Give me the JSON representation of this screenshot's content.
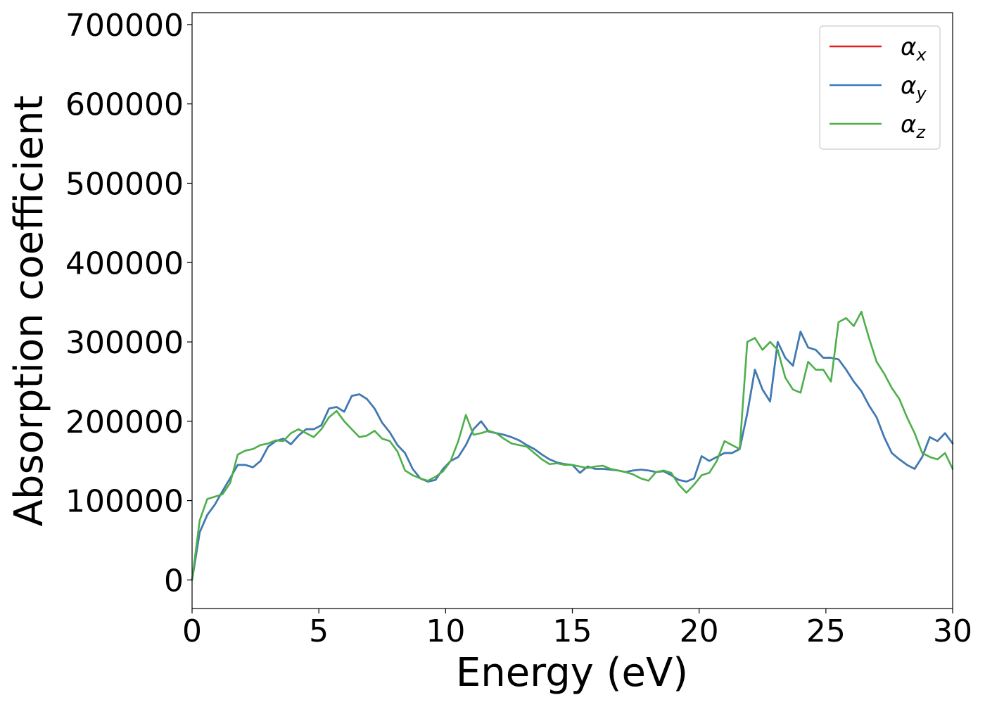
{
  "chart_data": {
    "type": "line",
    "xlabel": "Energy (eV)",
    "ylabel": "Absorption coefficient",
    "xlim": [
      0,
      30
    ],
    "ylim": [
      -36000,
      715000
    ],
    "x_ticks": [
      0,
      5,
      10,
      15,
      20,
      25,
      30
    ],
    "x_tick_labels": [
      "0",
      "5",
      "10",
      "15",
      "20",
      "25",
      "30"
    ],
    "y_ticks": [
      0,
      100000,
      200000,
      300000,
      400000,
      500000,
      600000,
      700000
    ],
    "y_tick_labels": [
      "0",
      "100000",
      "200000",
      "300000",
      "400000",
      "500000",
      "600000",
      "700000"
    ],
    "grid": false,
    "legend_position": "top-right",
    "series": [
      {
        "name": "αx",
        "symbol": "α",
        "subscript": "x",
        "color": "#e41a1c",
        "x": [
          0,
          0.3,
          0.6,
          0.9,
          1.2,
          1.5,
          1.8,
          2.1,
          2.4,
          2.7,
          3.0,
          3.3,
          3.6,
          3.9,
          4.2,
          4.5,
          4.8,
          5.1,
          5.4,
          5.7,
          6.0,
          6.3,
          6.6,
          6.9,
          7.2,
          7.5,
          7.8,
          8.1,
          8.4,
          8.7,
          9.0,
          9.3,
          9.6,
          9.9,
          10.2,
          10.5,
          10.8,
          11.1,
          11.4,
          11.7,
          12.0,
          12.3,
          12.6,
          12.9,
          13.2,
          13.5,
          13.8,
          14.1,
          14.4,
          14.7,
          15.0,
          15.3,
          15.6,
          15.9,
          16.2,
          16.5,
          16.8,
          17.1,
          17.4,
          17.7,
          18.0,
          18.3,
          18.6,
          18.9,
          19.2,
          19.5,
          19.8,
          20.1,
          20.4,
          20.7,
          21.0,
          21.3,
          21.6,
          21.9,
          22.2,
          22.5,
          22.8,
          23.1,
          23.4,
          23.7,
          24.0,
          24.3,
          24.6,
          24.9,
          25.2,
          25.5,
          25.8,
          26.1,
          26.4,
          26.7,
          27.0,
          27.3,
          27.6,
          27.9,
          28.2,
          28.5,
          28.8,
          29.1,
          29.4,
          29.7,
          30.0
        ],
        "values": [
          0,
          60000,
          82000,
          95000,
          112000,
          128000,
          145000,
          145000,
          142000,
          150000,
          168000,
          175000,
          178000,
          171000,
          182000,
          190000,
          190000,
          195000,
          216000,
          218000,
          212000,
          232000,
          234000,
          228000,
          216000,
          198000,
          186000,
          170000,
          160000,
          140000,
          128000,
          124000,
          126000,
          140000,
          150000,
          155000,
          170000,
          190000,
          200000,
          187000,
          185000,
          183000,
          180000,
          176000,
          170000,
          165000,
          158000,
          152000,
          148000,
          146000,
          145000,
          135000,
          143000,
          140000,
          140000,
          139000,
          138000,
          136000,
          138000,
          139000,
          138000,
          136000,
          137000,
          132000,
          126000,
          124000,
          128000,
          156000,
          150000,
          155000,
          160000,
          160000,
          165000,
          210000,
          265000,
          240000,
          225000,
          300000,
          280000,
          270000,
          313000,
          293000,
          290000,
          280000,
          280000,
          278000,
          265000,
          250000,
          238000,
          220000,
          205000,
          180000,
          160000,
          152000,
          145000,
          140000,
          155000,
          180000,
          175000,
          185000,
          172000
        ]
      },
      {
        "name": "αy",
        "symbol": "α",
        "subscript": "y",
        "color": "#377eb8",
        "x": [
          0,
          0.3,
          0.6,
          0.9,
          1.2,
          1.5,
          1.8,
          2.1,
          2.4,
          2.7,
          3.0,
          3.3,
          3.6,
          3.9,
          4.2,
          4.5,
          4.8,
          5.1,
          5.4,
          5.7,
          6.0,
          6.3,
          6.6,
          6.9,
          7.2,
          7.5,
          7.8,
          8.1,
          8.4,
          8.7,
          9.0,
          9.3,
          9.6,
          9.9,
          10.2,
          10.5,
          10.8,
          11.1,
          11.4,
          11.7,
          12.0,
          12.3,
          12.6,
          12.9,
          13.2,
          13.5,
          13.8,
          14.1,
          14.4,
          14.7,
          15.0,
          15.3,
          15.6,
          15.9,
          16.2,
          16.5,
          16.8,
          17.1,
          17.4,
          17.7,
          18.0,
          18.3,
          18.6,
          18.9,
          19.2,
          19.5,
          19.8,
          20.1,
          20.4,
          20.7,
          21.0,
          21.3,
          21.6,
          21.9,
          22.2,
          22.5,
          22.8,
          23.1,
          23.4,
          23.7,
          24.0,
          24.3,
          24.6,
          24.9,
          25.2,
          25.5,
          25.8,
          26.1,
          26.4,
          26.7,
          27.0,
          27.3,
          27.6,
          27.9,
          28.2,
          28.5,
          28.8,
          29.1,
          29.4,
          29.7,
          30.0
        ],
        "values": [
          0,
          60000,
          82000,
          95000,
          112000,
          128000,
          145000,
          145000,
          142000,
          150000,
          168000,
          175000,
          178000,
          171000,
          182000,
          190000,
          190000,
          195000,
          216000,
          218000,
          212000,
          232000,
          234000,
          228000,
          216000,
          198000,
          186000,
          170000,
          160000,
          140000,
          128000,
          124000,
          126000,
          140000,
          150000,
          155000,
          170000,
          190000,
          200000,
          187000,
          185000,
          183000,
          180000,
          176000,
          170000,
          165000,
          158000,
          152000,
          148000,
          146000,
          145000,
          135000,
          143000,
          140000,
          140000,
          139000,
          138000,
          136000,
          138000,
          139000,
          138000,
          136000,
          137000,
          132000,
          126000,
          124000,
          128000,
          156000,
          150000,
          155000,
          160000,
          160000,
          165000,
          210000,
          265000,
          240000,
          225000,
          300000,
          280000,
          270000,
          313000,
          293000,
          290000,
          280000,
          280000,
          278000,
          265000,
          250000,
          238000,
          220000,
          205000,
          180000,
          160000,
          152000,
          145000,
          140000,
          155000,
          180000,
          175000,
          185000,
          172000
        ]
      },
      {
        "name": "αz",
        "symbol": "α",
        "subscript": "z",
        "color": "#4daf4a",
        "x": [
          0,
          0.3,
          0.6,
          0.9,
          1.2,
          1.5,
          1.8,
          2.1,
          2.4,
          2.7,
          3.0,
          3.3,
          3.6,
          3.9,
          4.2,
          4.5,
          4.8,
          5.1,
          5.4,
          5.7,
          6.0,
          6.3,
          6.6,
          6.9,
          7.2,
          7.5,
          7.8,
          8.1,
          8.4,
          8.7,
          9.0,
          9.3,
          9.6,
          9.9,
          10.2,
          10.5,
          10.8,
          11.1,
          11.4,
          11.7,
          12.0,
          12.3,
          12.6,
          12.9,
          13.2,
          13.5,
          13.8,
          14.1,
          14.4,
          14.7,
          15.0,
          15.3,
          15.6,
          15.9,
          16.2,
          16.5,
          16.8,
          17.1,
          17.4,
          17.7,
          18.0,
          18.3,
          18.6,
          18.9,
          19.2,
          19.5,
          19.8,
          20.1,
          20.4,
          20.7,
          21.0,
          21.3,
          21.6,
          21.9,
          22.2,
          22.5,
          22.8,
          23.1,
          23.4,
          23.7,
          24.0,
          24.3,
          24.6,
          24.9,
          25.2,
          25.5,
          25.8,
          26.1,
          26.4,
          26.7,
          27.0,
          27.3,
          27.6,
          27.9,
          28.2,
          28.5,
          28.8,
          29.1,
          29.4,
          29.7,
          30.0
        ],
        "values": [
          0,
          75000,
          102000,
          105000,
          108000,
          122000,
          158000,
          163000,
          165000,
          170000,
          172000,
          176000,
          175000,
          185000,
          190000,
          185000,
          180000,
          190000,
          205000,
          213000,
          200000,
          190000,
          180000,
          182000,
          188000,
          178000,
          175000,
          162000,
          138000,
          132000,
          128000,
          125000,
          130000,
          137000,
          150000,
          175000,
          208000,
          183000,
          185000,
          188000,
          185000,
          178000,
          172000,
          170000,
          168000,
          160000,
          152000,
          146000,
          147000,
          145000,
          145000,
          143000,
          141000,
          143000,
          144000,
          140000,
          138000,
          136000,
          133000,
          128000,
          125000,
          136000,
          138000,
          135000,
          120000,
          110000,
          120000,
          132000,
          135000,
          150000,
          175000,
          170000,
          165000,
          300000,
          305000,
          290000,
          300000,
          290000,
          255000,
          240000,
          236000,
          275000,
          265000,
          265000,
          250000,
          325000,
          330000,
          320000,
          338000,
          305000,
          275000,
          260000,
          242000,
          228000,
          205000,
          185000,
          160000,
          155000,
          152000,
          160000,
          140000
        ]
      }
    ]
  }
}
